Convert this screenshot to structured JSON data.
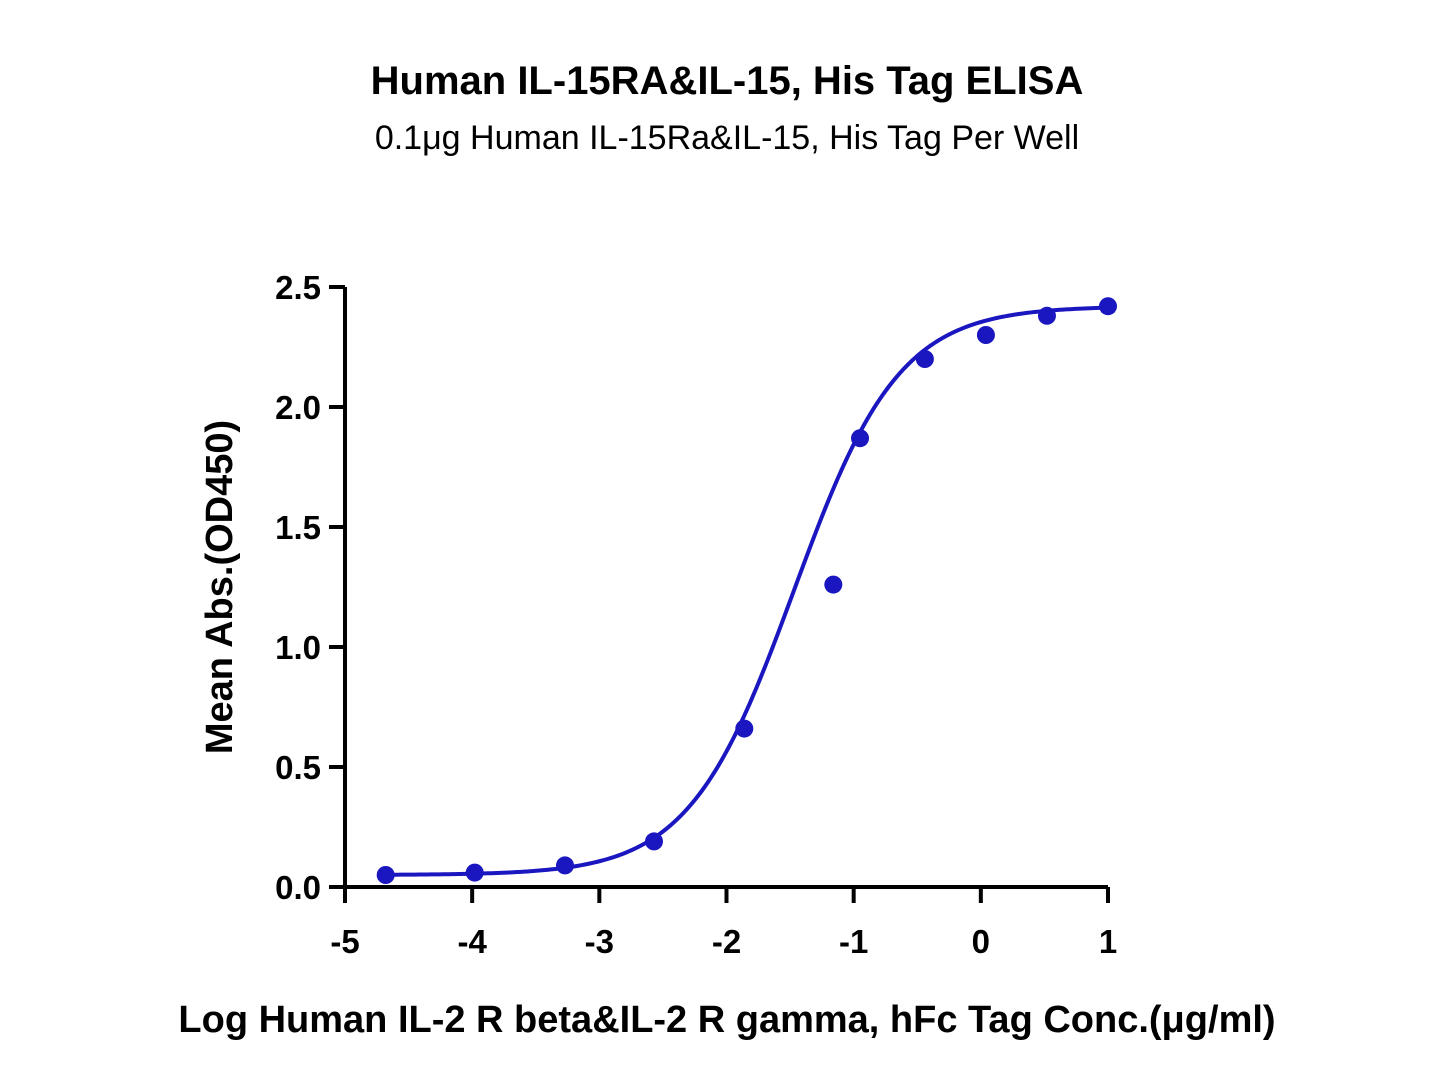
{
  "chart_data": {
    "type": "scatter",
    "title": "Human IL-15RA&IL-15, His Tag ELISA",
    "subtitle": "0.1μg Human IL-15Ra&IL-15, His Tag Per Well",
    "xlabel": "Log Human IL-2 R beta&IL-2 R gamma, hFc Tag Conc.(μg/ml)",
    "ylabel": "Mean Abs.(OD450)",
    "xlim": [
      -5,
      1
    ],
    "ylim": [
      0,
      2.5
    ],
    "x_ticks": [
      "-5",
      "-4",
      "-3",
      "-2",
      "-1",
      "0",
      "1"
    ],
    "y_ticks": [
      "0.0",
      "0.5",
      "1.0",
      "1.5",
      "2.0",
      "2.5"
    ],
    "grid": false,
    "legend": "none",
    "fit": "4PL sigmoidal curve",
    "color": "#1a16c0",
    "series": [
      {
        "x": [
          -4.68,
          -3.98,
          -3.27,
          -2.57,
          -1.86,
          -1.16,
          -0.95,
          -0.44,
          0.04,
          0.52,
          1.0
        ],
        "y": [
          0.05,
          0.06,
          0.09,
          0.19,
          0.66,
          1.26,
          1.87,
          2.2,
          2.3,
          2.38,
          2.42
        ]
      }
    ]
  }
}
